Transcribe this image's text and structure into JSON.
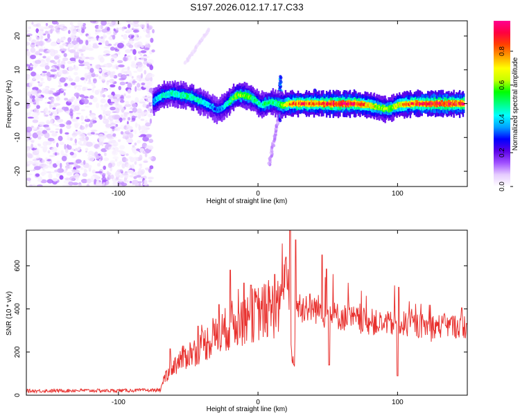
{
  "title": "S197.2026.012.17.17.C33",
  "chart_data": [
    {
      "type": "heatmap",
      "name": "spectrogram",
      "xlabel": "Height of straight line (km)",
      "ylabel": "Frequency (Hz)",
      "xlim": [
        -166,
        150
      ],
      "ylim": [
        -24.5,
        24.5
      ],
      "xticks": [
        -100,
        0,
        100
      ],
      "yticks": [
        20,
        10,
        0,
        -10,
        -20
      ],
      "colorbar": {
        "label": "Normalized spectral amplitude",
        "range": [
          0,
          0.98
        ],
        "ticks": [
          0,
          0.2,
          0.4,
          0.6,
          0.8
        ],
        "tick_labels": [
          "0.0",
          "0.2",
          "0.4",
          "0.6",
          "0.8"
        ],
        "colormap": [
          "#ffffff",
          "#e6ccff",
          "#a050ff",
          "#5a00e6",
          "#0000ff",
          "#00a0ff",
          "#00ffff",
          "#00ff80",
          "#00ff00",
          "#c8ff00",
          "#ffff00",
          "#ffa000",
          "#ff4000",
          "#ff0040",
          "#ff0090"
        ]
      },
      "noise_region_x": [
        -166,
        -75
      ],
      "ridge": {
        "x": [
          -75,
          -72,
          -68,
          -62,
          -55,
          -48,
          -43,
          -37,
          -33,
          -29,
          -26,
          -22,
          -18,
          -15,
          -11,
          -6,
          -2,
          2,
          6,
          10,
          14,
          18,
          22,
          28,
          35,
          42,
          50,
          60,
          70,
          80,
          85,
          90,
          95,
          100,
          110,
          120,
          130,
          140,
          148
        ],
        "freq": [
          0.5,
          1.5,
          2.5,
          3.0,
          2.5,
          2.0,
          1.0,
          0.0,
          -1.0,
          -2.0,
          -1.5,
          0.0,
          1.5,
          2.5,
          2.5,
          2.0,
          1.0,
          -0.5,
          0.0,
          0.5,
          0.0,
          -0.5,
          0.0,
          0.0,
          0.0,
          0.0,
          0.0,
          0.0,
          0.0,
          -0.5,
          -1.0,
          -1.5,
          -1.5,
          -0.5,
          0.0,
          0.0,
          0.0,
          0.0,
          0.0
        ],
        "amplitude": [
          0.35,
          0.4,
          0.45,
          0.45,
          0.45,
          0.5,
          0.45,
          0.4,
          0.35,
          0.3,
          0.35,
          0.45,
          0.55,
          0.6,
          0.6,
          0.55,
          0.5,
          0.45,
          0.5,
          0.5,
          0.5,
          0.6,
          0.75,
          0.85,
          0.85,
          0.8,
          0.9,
          0.95,
          0.9,
          0.75,
          0.65,
          0.6,
          0.6,
          0.7,
          0.85,
          0.9,
          0.92,
          0.9,
          0.88
        ]
      },
      "features": [
        {
          "kind": "diagonal streak",
          "x": [
            -52,
            -35
          ],
          "freq": [
            12,
            22
          ],
          "amplitude": 0.05
        },
        {
          "kind": "diagonal streak",
          "x": [
            8,
            15
          ],
          "freq": [
            -18,
            -4
          ],
          "amplitude": 0.1
        },
        {
          "kind": "vertical burst",
          "x": [
            16,
            16
          ],
          "freq": [
            -5,
            8
          ],
          "amplitude": 0.3
        },
        {
          "kind": "vertical burst",
          "x": [
            41,
            41
          ],
          "freq": [
            -2,
            4
          ],
          "amplitude": 0.25
        }
      ]
    },
    {
      "type": "line",
      "name": "snr",
      "xlabel": "Height of straight line (km)",
      "ylabel": "SNR (10 * v/v)",
      "xlim": [
        -166,
        150
      ],
      "ylim": [
        0,
        765
      ],
      "xticks": [
        -100,
        0,
        100
      ],
      "yticks": [
        0,
        200,
        400,
        600
      ],
      "color": "#e8312e",
      "series": [
        {
          "name": "SNR",
          "x": [
            -166,
            -150,
            -130,
            -110,
            -90,
            -75,
            -70,
            -66,
            -62,
            -58,
            -54,
            -50,
            -46,
            -42,
            -38,
            -34,
            -30,
            -26,
            -22,
            -18,
            -14,
            -10,
            -6,
            -2,
            2,
            6,
            10,
            14,
            16,
            18,
            20,
            22,
            24,
            26,
            28,
            30,
            34,
            38,
            42,
            46,
            50,
            54,
            58,
            62,
            66,
            70,
            75,
            80,
            85,
            90,
            95,
            100,
            105,
            110,
            115,
            120,
            125,
            130,
            135,
            140,
            145,
            150
          ],
          "y": [
            20,
            20,
            22,
            21,
            22,
            23,
            24,
            90,
            130,
            150,
            170,
            190,
            200,
            220,
            240,
            255,
            270,
            290,
            310,
            330,
            340,
            355,
            365,
            375,
            385,
            390,
            395,
            400,
            450,
            500,
            570,
            480,
            200,
            130,
            410,
            420,
            410,
            405,
            400,
            395,
            385,
            370,
            365,
            360,
            355,
            350,
            345,
            340,
            335,
            330,
            330,
            335,
            330,
            325,
            325,
            320,
            320,
            320,
            322,
            320,
            320,
            320
          ]
        }
      ],
      "spikes": [
        {
          "x": -63,
          "y": 215
        },
        {
          "x": -43,
          "y": 320
        },
        {
          "x": -28,
          "y": 420
        },
        {
          "x": -20,
          "y": 580
        },
        {
          "x": -10,
          "y": 520
        },
        {
          "x": -5,
          "y": 510
        },
        {
          "x": 12,
          "y": 560
        },
        {
          "x": 20,
          "y": 640
        },
        {
          "x": 23,
          "y": 765
        },
        {
          "x": 27,
          "y": 720
        },
        {
          "x": 46,
          "y": 650
        },
        {
          "x": 49,
          "y": 585
        },
        {
          "x": 51,
          "y": 140
        },
        {
          "x": 100,
          "y": 90
        },
        {
          "x": 101,
          "y": 500
        },
        {
          "x": 146,
          "y": 405
        }
      ]
    }
  ]
}
